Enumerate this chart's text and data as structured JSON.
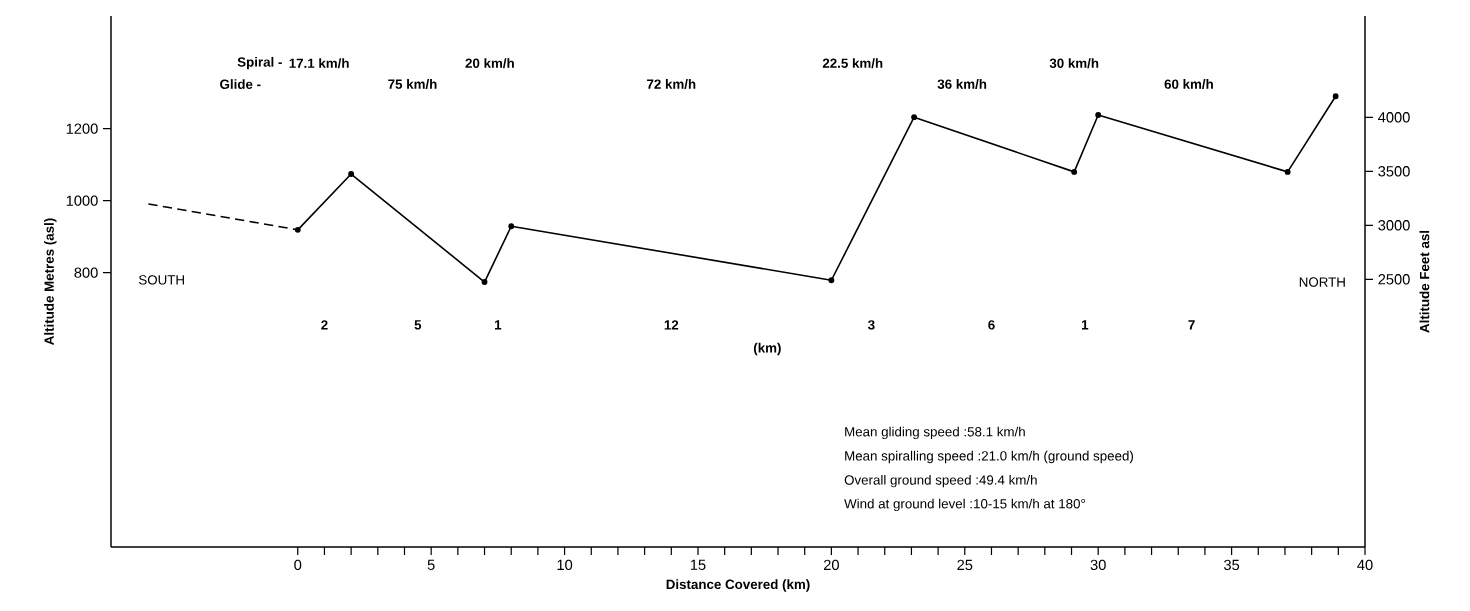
{
  "chart_data": {
    "type": "line",
    "xlabel": "Distance Covered (km)",
    "ylabel": "Altitude Metres (asl)",
    "y2label": "Altitude Feet asl",
    "xlim": [
      -7,
      40
    ],
    "ylim": [
      38,
      1513
    ],
    "y2lim": [
      21,
      4938
    ],
    "xticks": [
      0,
      {
        "value": 1,
        "label": null
      },
      {
        "value": 2,
        "label": null
      },
      {
        "value": 3,
        "label": null
      },
      {
        "value": 4,
        "label": null
      },
      5,
      {
        "value": 6,
        "label": null
      },
      {
        "value": 7,
        "label": null
      },
      {
        "value": 8,
        "label": null
      },
      {
        "value": 9,
        "label": null
      },
      10,
      {
        "value": 11,
        "label": null
      },
      {
        "value": 12,
        "label": null
      },
      {
        "value": 13,
        "label": null
      },
      {
        "value": 14,
        "label": null
      },
      15,
      {
        "value": 16,
        "label": null
      },
      {
        "value": 17,
        "label": null
      },
      {
        "value": 18,
        "label": null
      },
      {
        "value": 19,
        "label": null
      },
      20,
      {
        "value": 21,
        "label": null
      },
      {
        "value": 22,
        "label": null
      },
      {
        "value": 23,
        "label": null
      },
      {
        "value": 24,
        "label": null
      },
      25,
      {
        "value": 26,
        "label": null
      },
      {
        "value": 27,
        "label": null
      },
      {
        "value": 28,
        "label": null
      },
      {
        "value": 29,
        "label": null
      },
      30,
      {
        "value": 31,
        "label": null
      },
      {
        "value": 32,
        "label": null
      },
      {
        "value": 33,
        "label": null
      },
      {
        "value": 34,
        "label": null
      },
      35,
      {
        "value": 36,
        "label": null
      },
      {
        "value": 37,
        "label": null
      },
      {
        "value": 38,
        "label": null
      },
      {
        "value": 39,
        "label": null
      },
      40
    ],
    "yticks": [
      800,
      1000,
      1200
    ],
    "y2ticks": [
      2500,
      3000,
      3500,
      4000
    ],
    "grid": false,
    "series": [
      {
        "color": "#000000",
        "line_style": "dashed",
        "marker": "none",
        "x": [
          -5.6,
          0
        ],
        "values": [
          991,
          919
        ]
      },
      {
        "color": "#000000",
        "line_style": "solid",
        "marker": "circle",
        "x": [
          0,
          2,
          7,
          8,
          20,
          23.1,
          29.1,
          30,
          37.1,
          38.9
        ],
        "values": [
          919,
          1074,
          774,
          929,
          779,
          1232,
          1080,
          1238,
          1080,
          1290
        ]
      }
    ],
    "annotations": [
      "Spiral -",
      "Glide -",
      "SOUTH",
      "NORTH",
      "(km)",
      "Mean gliding speed  :58.1 km/h",
      "Mean spiralling speed :21.0 km/h    (ground speed)",
      "Overall ground speed :49.4 km/h",
      "Wind at ground level :10-15 km/h   at 180°",
      "17.1 km/h",
      "20 km/h",
      "22.5 km/h",
      "30 km/h",
      "75 km/h",
      "72 km/h",
      "36 km/h",
      "60 km/h",
      "2",
      "5",
      "1",
      "12",
      "3",
      "6",
      "1",
      "7"
    ]
  }
}
